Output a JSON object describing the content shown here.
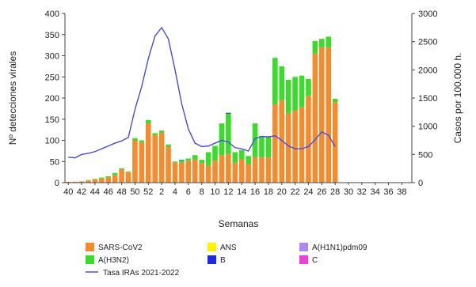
{
  "chart_data": {
    "type": "bar",
    "stacked": true,
    "xlabel": "Semanas",
    "ylabel": "Nº detecciones virales",
    "y2label": "Casos por 100.000 h.",
    "ylim": [
      0,
      400
    ],
    "y2lim": [
      0,
      3000
    ],
    "yticks": [
      "0",
      "50",
      "100",
      "150",
      "200",
      "250",
      "300",
      "350",
      "400"
    ],
    "y2ticks": [
      "0",
      "500",
      "1000",
      "1500",
      "2000",
      "2500",
      "3000"
    ],
    "grid": false,
    "legend_position": "bottom",
    "weeks": [
      40,
      41,
      42,
      43,
      44,
      45,
      46,
      47,
      48,
      49,
      50,
      51,
      52,
      1,
      2,
      3,
      4,
      5,
      6,
      7,
      8,
      9,
      10,
      11,
      12,
      13,
      14,
      15,
      16,
      17,
      18,
      19,
      20,
      21,
      22,
      23,
      24,
      25,
      26,
      27,
      28,
      29,
      30,
      31,
      32,
      33,
      34,
      35,
      36,
      37,
      38,
      39
    ],
    "xtick_labels": [
      "40",
      "42",
      "44",
      "46",
      "48",
      "50",
      "52",
      "2",
      "4",
      "6",
      "8",
      "10",
      "12",
      "14",
      "16",
      "18",
      "20",
      "22",
      "24",
      "26",
      "28",
      "30",
      "32",
      "34",
      "36",
      "38"
    ],
    "series": [
      {
        "name": "SARS-CoV2",
        "color": "#F58B2D",
        "values": [
          2,
          2,
          3,
          5,
          8,
          10,
          12,
          18,
          32,
          24,
          100,
          95,
          140,
          112,
          118,
          85,
          48,
          47,
          52,
          55,
          46,
          40,
          52,
          65,
          68,
          47,
          55,
          43,
          60,
          60,
          60,
          185,
          195,
          163,
          170,
          178,
          205,
          305,
          320,
          320,
          190,
          0,
          0,
          0,
          0,
          0,
          0,
          0,
          0,
          0,
          0,
          0
        ]
      },
      {
        "name": "A(H3N2)",
        "color": "#3ADB2A",
        "values": [
          0,
          0,
          0,
          1,
          1,
          2,
          3,
          5,
          2,
          2,
          5,
          5,
          8,
          5,
          5,
          5,
          2,
          6,
          5,
          10,
          8,
          32,
          35,
          75,
          95,
          25,
          22,
          20,
          80,
          50,
          50,
          110,
          80,
          80,
          80,
          75,
          40,
          30,
          20,
          25,
          8,
          0,
          0,
          0,
          0,
          0,
          0,
          0,
          0,
          0,
          0,
          0
        ]
      },
      {
        "name": "ANS",
        "color": "#FFF200",
        "values": [
          0,
          0,
          0,
          0,
          0,
          0,
          0,
          0,
          0,
          0,
          0,
          0,
          0,
          0,
          0,
          0,
          0,
          0,
          0,
          0,
          0,
          0,
          0,
          0,
          0,
          0,
          0,
          0,
          0,
          0,
          0,
          0,
          0,
          0,
          0,
          0,
          0,
          0,
          0,
          0,
          0,
          0,
          0,
          0,
          0,
          0,
          0,
          0,
          0,
          0,
          0,
          0
        ]
      },
      {
        "name": "B",
        "color": "#1A2BE0",
        "values": [
          0,
          0,
          0,
          0,
          0,
          0,
          0,
          0,
          0,
          0,
          0,
          0,
          0,
          0,
          0,
          0,
          0,
          1,
          0,
          0,
          0,
          0,
          0,
          0,
          2,
          0,
          0,
          0,
          0,
          0,
          0,
          0,
          0,
          0,
          0,
          0,
          0,
          0,
          0,
          0,
          0,
          0,
          0,
          0,
          0,
          0,
          0,
          0,
          0,
          0,
          0,
          0
        ]
      },
      {
        "name": "A(H1N1)pdm09",
        "color": "#A98CF2",
        "values": [
          0,
          0,
          0,
          0,
          0,
          0,
          0,
          0,
          0,
          0,
          0,
          0,
          0,
          0,
          0,
          0,
          0,
          0,
          0,
          0,
          0,
          0,
          0,
          0,
          0,
          0,
          0,
          0,
          0,
          0,
          0,
          0,
          0,
          0,
          0,
          0,
          0,
          0,
          0,
          0,
          0,
          0,
          0,
          0,
          0,
          0,
          0,
          0,
          0,
          0,
          0,
          0
        ]
      },
      {
        "name": "C",
        "color": "#F23FD9",
        "values": [
          0,
          0,
          0,
          0,
          0,
          0,
          0,
          0,
          0,
          0,
          0,
          0,
          0,
          0,
          0,
          0,
          0,
          0,
          0,
          0,
          0,
          0,
          0,
          0,
          0,
          0,
          0,
          0,
          0,
          0,
          0,
          0,
          0,
          0,
          0,
          0,
          0,
          0,
          0,
          0,
          0,
          0,
          0,
          0,
          0,
          0,
          0,
          0,
          0,
          0,
          0,
          0
        ]
      }
    ],
    "line": {
      "name": "Tasa IRAs 2021-2022",
      "color": "#4A4AE0",
      "axis": "right",
      "values": [
        450,
        440,
        500,
        520,
        550,
        600,
        650,
        700,
        740,
        800,
        1300,
        1700,
        2200,
        2600,
        2750,
        2550,
        2000,
        1400,
        950,
        700,
        640,
        650,
        700,
        750,
        720,
        620,
        600,
        560,
        780,
        820,
        810,
        830,
        750,
        650,
        600,
        600,
        640,
        760,
        900,
        840,
        640
      ]
    }
  }
}
